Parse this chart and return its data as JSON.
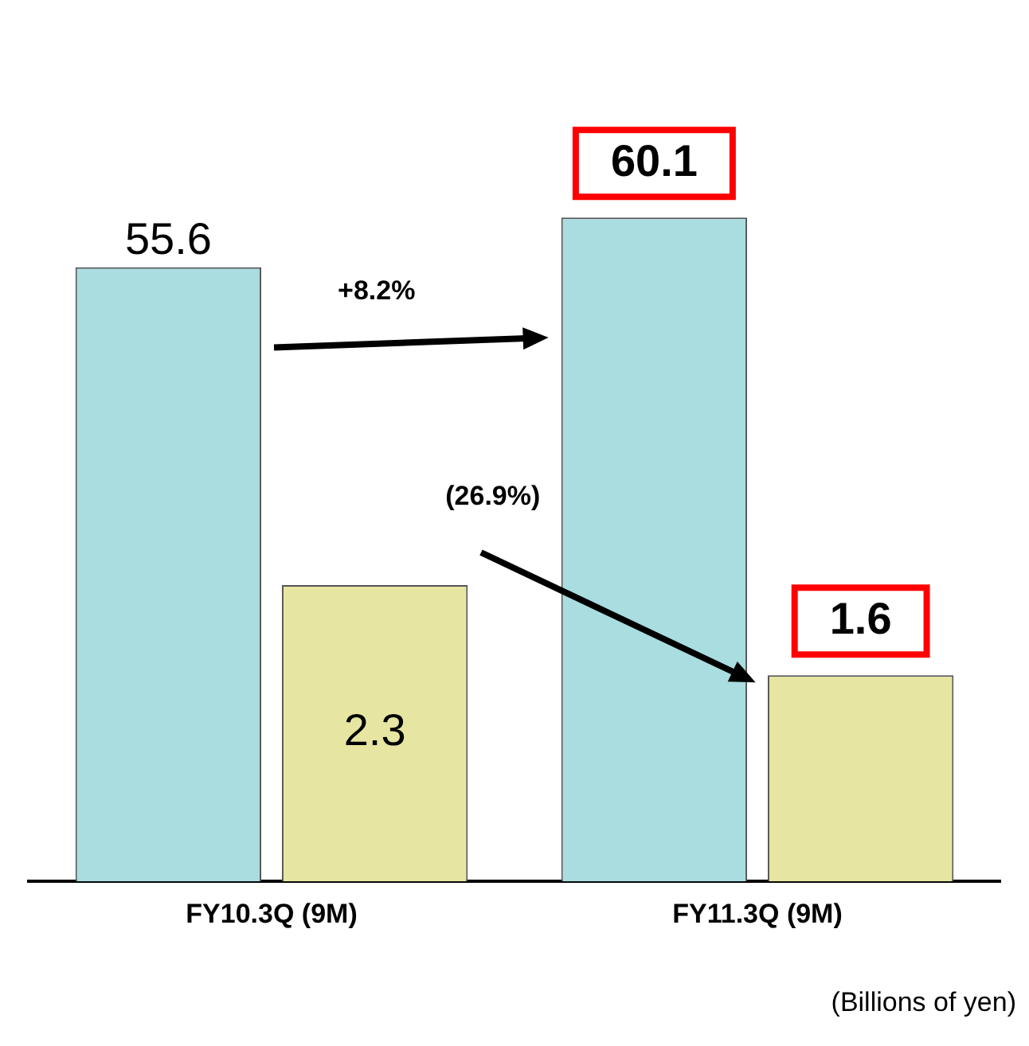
{
  "chart_data": {
    "type": "bar",
    "categories": [
      "FY10.3Q (9M)",
      "FY11.3Q (9M)"
    ],
    "series": [
      {
        "color": "#a9dde0",
        "values": [
          55.6,
          60.1
        ]
      },
      {
        "color": "#e6e6a2",
        "values": [
          2.3,
          1.6
        ],
        "axis": "y2"
      }
    ],
    "tick_labels": "x",
    "data_labels": true,
    "grid": false,
    "legend": false,
    "annotations": [
      "+8.2%",
      "(26.9%)",
      "(Billions of yen)"
    ]
  }
}
